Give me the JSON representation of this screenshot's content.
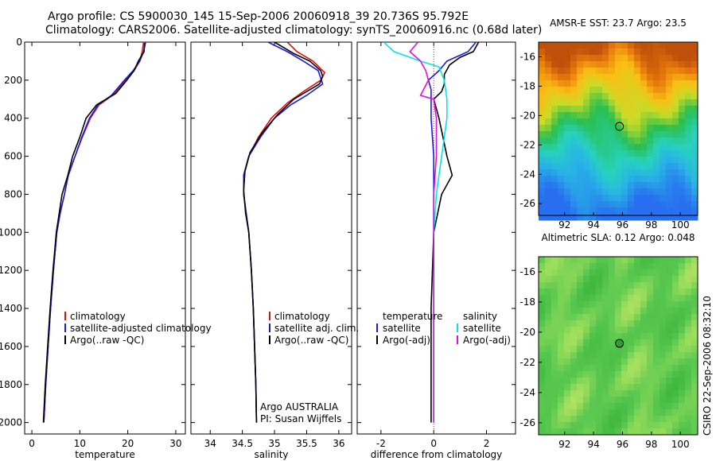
{
  "header": {
    "title_line1": "Argo profile: CS 5900030_145 15-Sep-2006 20060918_39 20.736S 95.792E",
    "title_line2": "Climatology: CARS2006. Satellite-adjusted climatology: synTS_20060916.nc (0.68d later)"
  },
  "credit": "CSIRO 22-Sep-2006 08:32:10",
  "colors": {
    "red": "#e01010",
    "blue": "#1a1adc",
    "black": "#000000",
    "cyan": "#00e8e8",
    "magenta": "#e010e0"
  },
  "chart_data": [
    {
      "type": "line",
      "xlabel": "temperature",
      "xlim": [
        -1.5,
        32
      ],
      "xticks": [
        0,
        10,
        20,
        30
      ],
      "ylim": [
        2060,
        0
      ],
      "yticks": [
        0,
        200,
        400,
        600,
        800,
        1000,
        1200,
        1400,
        1600,
        1800,
        2000
      ],
      "legend": [
        "climatology",
        "satellite-adjusted climatology",
        "Argo(..raw -QC)"
      ],
      "series": [
        {
          "name": "climatology",
          "color": "red",
          "points": [
            [
              23.3,
              0
            ],
            [
              23.0,
              50
            ],
            [
              22.5,
              100
            ],
            [
              21.3,
              150
            ],
            [
              19.6,
              200
            ],
            [
              16.8,
              280
            ],
            [
              14.0,
              330
            ],
            [
              12.2,
              400
            ],
            [
              10.5,
              500
            ],
            [
              9.0,
              600
            ],
            [
              7.6,
              700
            ],
            [
              6.8,
              800
            ],
            [
              5.9,
              900
            ],
            [
              5.2,
              1000
            ],
            [
              4.5,
              1200
            ],
            [
              3.9,
              1400
            ],
            [
              3.4,
              1600
            ],
            [
              2.9,
              1800
            ],
            [
              2.5,
              2000
            ]
          ]
        },
        {
          "name": "satellite-adjusted climatology",
          "color": "blue",
          "points": [
            [
              23.7,
              0
            ],
            [
              23.3,
              50
            ],
            [
              22.5,
              100
            ],
            [
              21.1,
              150
            ],
            [
              19.3,
              200
            ],
            [
              16.6,
              280
            ],
            [
              13.8,
              330
            ],
            [
              12.0,
              400
            ],
            [
              10.4,
              500
            ],
            [
              9.0,
              600
            ],
            [
              7.6,
              700
            ],
            [
              6.8,
              800
            ],
            [
              5.9,
              900
            ],
            [
              5.2,
              1000
            ],
            [
              4.5,
              1200
            ],
            [
              3.9,
              1400
            ],
            [
              3.4,
              1600
            ],
            [
              2.9,
              1800
            ],
            [
              2.5,
              2000
            ]
          ]
        },
        {
          "name": "Argo(..raw -QC)",
          "color": "black",
          "points": [
            [
              23.5,
              5
            ],
            [
              23.4,
              50
            ],
            [
              22.2,
              100
            ],
            [
              21.3,
              150
            ],
            [
              19.8,
              200
            ],
            [
              17.5,
              270
            ],
            [
              14.8,
              310
            ],
            [
              13.5,
              330
            ],
            [
              11.3,
              400
            ],
            [
              10.0,
              500
            ],
            [
              8.5,
              600
            ],
            [
              7.5,
              700
            ],
            [
              6.3,
              800
            ],
            [
              5.7,
              900
            ],
            [
              5.1,
              1000
            ],
            [
              4.4,
              1200
            ],
            [
              3.8,
              1400
            ],
            [
              3.3,
              1600
            ],
            [
              2.8,
              1800
            ],
            [
              2.4,
              2000
            ]
          ]
        }
      ]
    },
    {
      "type": "line",
      "xlabel": "salinity",
      "xlim": [
        33.7,
        36.2
      ],
      "xticks": [
        34,
        34.5,
        35,
        35.5,
        36
      ],
      "ylim": [
        2060,
        0
      ],
      "yticks": [
        0,
        200,
        400,
        600,
        800,
        1000,
        1200,
        1400,
        1600,
        1800,
        2000
      ],
      "legend": [
        "climatology",
        "satellite adj. clim.",
        "Argo(..raw -QC)"
      ],
      "annotation": [
        "Argo AUSTRALIA",
        "PI: Susan Wijffels"
      ],
      "series": [
        {
          "name": "climatology",
          "color": "red",
          "points": [
            [
              35.2,
              0
            ],
            [
              35.35,
              50
            ],
            [
              35.6,
              100
            ],
            [
              35.78,
              160
            ],
            [
              35.72,
              200
            ],
            [
              35.45,
              260
            ],
            [
              35.2,
              320
            ],
            [
              34.95,
              400
            ],
            [
              34.75,
              500
            ],
            [
              34.6,
              600
            ],
            [
              34.52,
              700
            ],
            [
              34.52,
              800
            ],
            [
              34.56,
              900
            ],
            [
              34.6,
              1000
            ],
            [
              34.64,
              1200
            ],
            [
              34.67,
              1400
            ],
            [
              34.69,
              1600
            ],
            [
              34.71,
              1800
            ],
            [
              34.72,
              2000
            ]
          ]
        },
        {
          "name": "satellite adj. clim.",
          "color": "blue",
          "points": [
            [
              34.9,
              0
            ],
            [
              35.2,
              50
            ],
            [
              35.45,
              100
            ],
            [
              35.68,
              150
            ],
            [
              35.75,
              220
            ],
            [
              35.5,
              280
            ],
            [
              35.25,
              330
            ],
            [
              35.0,
              400
            ],
            [
              34.78,
              500
            ],
            [
              34.6,
              600
            ],
            [
              34.52,
              700
            ],
            [
              34.52,
              800
            ],
            [
              34.56,
              900
            ],
            [
              34.6,
              1000
            ],
            [
              34.64,
              1200
            ],
            [
              34.67,
              1400
            ],
            [
              34.69,
              1600
            ],
            [
              34.71,
              1800
            ],
            [
              34.72,
              2000
            ]
          ]
        },
        {
          "name": "Argo(..raw -QC)",
          "color": "black",
          "points": [
            [
              35.0,
              0
            ],
            [
              35.15,
              30
            ],
            [
              35.3,
              60
            ],
            [
              35.55,
              100
            ],
            [
              35.72,
              150
            ],
            [
              35.75,
              180
            ],
            [
              35.7,
              220
            ],
            [
              35.55,
              250
            ],
            [
              35.3,
              300
            ],
            [
              35.05,
              380
            ],
            [
              34.8,
              480
            ],
            [
              34.62,
              580
            ],
            [
              34.54,
              680
            ],
            [
              34.52,
              780
            ],
            [
              34.55,
              900
            ],
            [
              34.6,
              1000
            ],
            [
              34.64,
              1200
            ],
            [
              34.67,
              1400
            ],
            [
              34.69,
              1600
            ],
            [
              34.71,
              1800
            ],
            [
              34.72,
              2000
            ]
          ]
        }
      ]
    },
    {
      "type": "line",
      "xlabel": "difference from climatology",
      "xlim": [
        -2.9,
        3.1
      ],
      "xticks": [
        -2,
        0,
        2
      ],
      "ylim": [
        2060,
        0
      ],
      "yticks": [
        0,
        200,
        400,
        600,
        800,
        1000,
        1200,
        1400,
        1600,
        1800,
        2000
      ],
      "legend_temperature": [
        "temperature",
        "satellite",
        "Argo(-adj)"
      ],
      "legend_salinity": [
        "salinity",
        "satellite",
        "Argo(-adj)"
      ],
      "series": [
        {
          "name": "temperature satellite",
          "color": "blue",
          "points": [
            [
              1.6,
              0
            ],
            [
              1.3,
              50
            ],
            [
              0.5,
              100
            ],
            [
              0.2,
              150
            ],
            [
              -0.2,
              200
            ],
            [
              -0.1,
              250
            ],
            [
              -0.1,
              300
            ],
            [
              -0.1,
              400
            ],
            [
              0.0,
              600
            ],
            [
              0.0,
              800
            ],
            [
              0.0,
              1000
            ],
            [
              0.0,
              1400
            ],
            [
              0.0,
              1800
            ],
            [
              0.0,
              2000
            ]
          ]
        },
        {
          "name": "temperature Argo(-adj)",
          "color": "black",
          "points": [
            [
              1.7,
              0
            ],
            [
              1.5,
              50
            ],
            [
              1.0,
              80
            ],
            [
              0.6,
              120
            ],
            [
              0.4,
              170
            ],
            [
              0.4,
              220
            ],
            [
              0.3,
              260
            ],
            [
              0.0,
              300
            ],
            [
              0.2,
              400
            ],
            [
              0.5,
              600
            ],
            [
              0.7,
              700
            ],
            [
              0.3,
              800
            ],
            [
              0.0,
              1000
            ],
            [
              -0.1,
              1400
            ],
            [
              -0.1,
              1800
            ],
            [
              -0.1,
              2000
            ]
          ]
        },
        {
          "name": "salinity satellite",
          "color": "cyan",
          "points": [
            [
              -1.9,
              0
            ],
            [
              -1.5,
              50
            ],
            [
              -0.5,
              100
            ],
            [
              0.2,
              130
            ],
            [
              0.4,
              200
            ],
            [
              0.5,
              300
            ],
            [
              0.5,
              400
            ],
            [
              0.3,
              600
            ],
            [
              0.1,
              800
            ],
            [
              0.0,
              1000
            ],
            [
              0.0,
              1400
            ],
            [
              0.0,
              1800
            ],
            [
              0.0,
              2000
            ]
          ]
        },
        {
          "name": "salinity Argo(-adj)",
          "color": "magenta",
          "points": [
            [
              -0.6,
              0
            ],
            [
              -0.9,
              50
            ],
            [
              -0.5,
              100
            ],
            [
              -0.3,
              150
            ],
            [
              -0.2,
              200
            ],
            [
              -0.5,
              280
            ],
            [
              0.0,
              300
            ],
            [
              0.1,
              400
            ],
            [
              0.1,
              600
            ],
            [
              0.0,
              800
            ],
            [
              0.0,
              1000
            ],
            [
              0.0,
              1400
            ],
            [
              0.0,
              1800
            ],
            [
              0.0,
              2000
            ]
          ]
        }
      ]
    },
    {
      "type": "heatmap",
      "title": "AMSR-E SST: 23.7 Argo: 23.5",
      "xlim": [
        90.2,
        101.2
      ],
      "xticks": [
        92,
        94,
        96,
        98,
        100
      ],
      "ylim": [
        -26.8,
        -15.0
      ],
      "yticks": [
        -16,
        -18,
        -20,
        -22,
        -24,
        -26
      ],
      "marker": [
        95.79,
        -20.74
      ]
    },
    {
      "type": "heatmap",
      "title": "Altimetric SLA: 0.12 Argo: 0.048",
      "xlim": [
        90.2,
        101.2
      ],
      "xticks": [
        92,
        94,
        96,
        98,
        100
      ],
      "ylim": [
        -26.8,
        -15.0
      ],
      "yticks": [
        -16,
        -18,
        -20,
        -22,
        -24,
        -26
      ],
      "marker": [
        95.79,
        -20.74
      ]
    }
  ]
}
